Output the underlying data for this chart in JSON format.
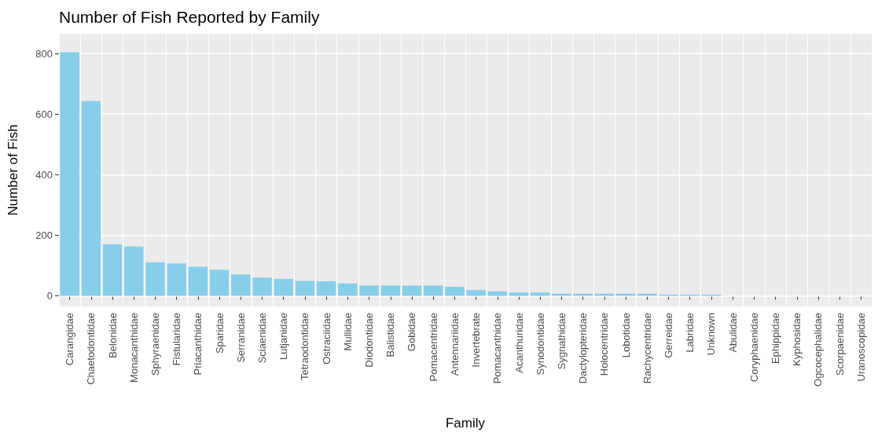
{
  "chart_data": {
    "type": "bar",
    "title": "Number of Fish Reported by Family",
    "xlabel": "Family",
    "ylabel": "Number of Fish",
    "categories": [
      "Carangidae",
      "Chaetodontidae",
      "Belonidae",
      "Monacanthidae",
      "Sphyraenidae",
      "Fistularidae",
      "Priacanthidae",
      "Sparidae",
      "Serranidae",
      "Sciaenidae",
      "Lutjanidae",
      "Tetraodontidae",
      "Ostraciidae",
      "Mullidae",
      "Diodontidae",
      "Balistidae",
      "Gobidae",
      "Pomacentridae",
      "Antennariidae",
      "Invertebrate",
      "Pomacanthidae",
      "Acanthuridae",
      "Synodontidae",
      "Sygnathidae",
      "Dactylopteridae",
      "Holocentridae",
      "Lobotidae",
      "Rachycentridae",
      "Gerreidae",
      "Labridae",
      "Unknown",
      "Abulidae",
      "Coryphaenidae",
      "Ephippidae",
      "Kyphosidae",
      "Ogcocephalidae",
      "Scorpaenidae",
      "Uranoscopidae"
    ],
    "values": [
      804,
      643,
      170,
      163,
      111,
      107,
      96,
      86,
      71,
      60,
      56,
      49,
      48,
      41,
      34,
      34,
      34,
      34,
      30,
      19,
      15,
      11,
      11,
      7,
      7,
      7,
      7,
      7,
      4,
      4,
      4,
      0,
      0,
      0,
      0,
      0,
      0,
      0
    ],
    "color": "#87ceeb",
    "ylim": [
      -35,
      865
    ],
    "yticks": [
      0,
      200,
      400,
      600,
      800
    ],
    "grid": true
  }
}
